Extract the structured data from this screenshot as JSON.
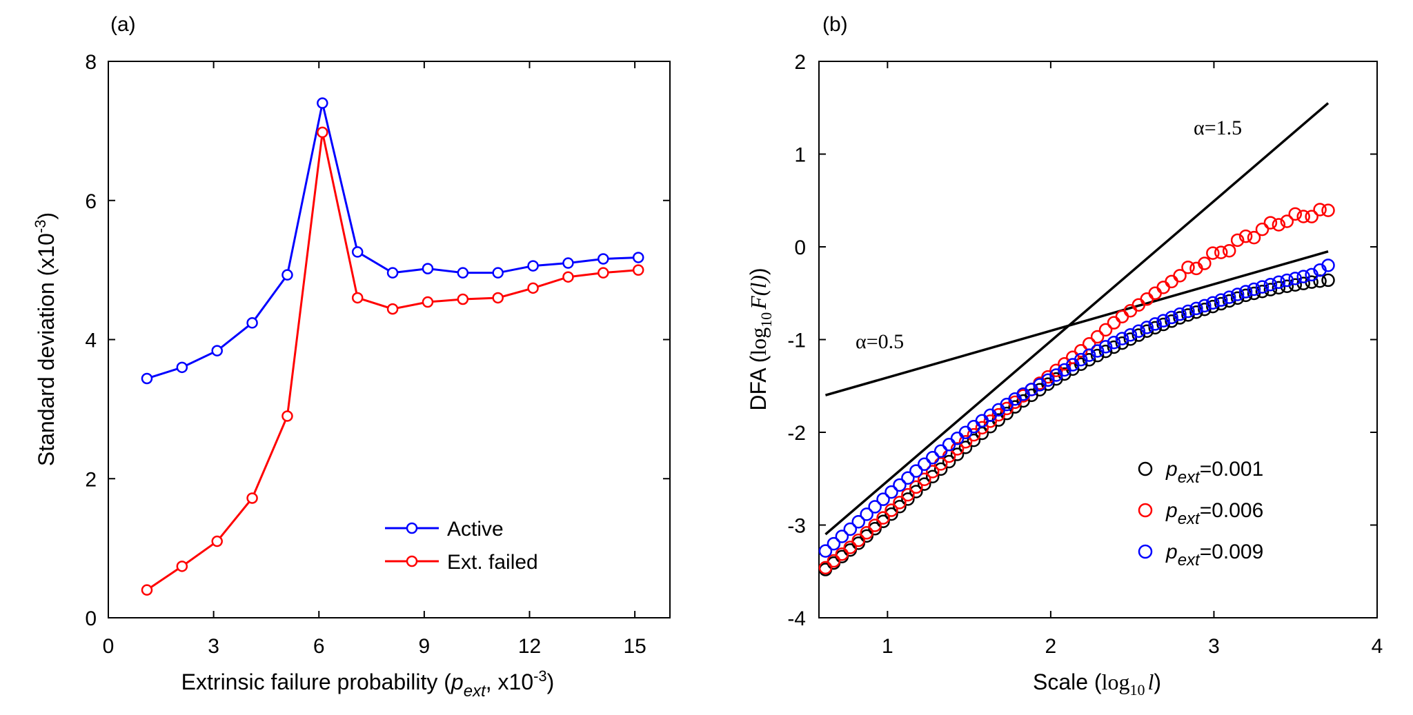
{
  "panel_a": {
    "label": "(a)",
    "ylabel_text": "Standard deviation (x10",
    "ylabel_sup": "-3",
    "ylabel_close": ")",
    "xlabel_text": "Extrinsic failure probability (",
    "xlabel_sub_p": "p",
    "xlabel_sub_ext": "ext",
    "xlabel_mid": ", x10",
    "xlabel_sup": "-3",
    "xlabel_close": ")"
  },
  "panel_b": {
    "label": "(b)",
    "ylabel_prefix": "DFA (",
    "ylabel_math_log": "log",
    "ylabel_math_sub": "10",
    "ylabel_math_F": "F",
    "ylabel_math_l": "(l)",
    "ylabel_suffix": ")",
    "xlabel_prefix": "Scale (",
    "xlabel_math_log": "log",
    "xlabel_math_sub": "10",
    "xlabel_math_l": "l",
    "xlabel_suffix": ")",
    "annotation_alpha15": "α=1.5",
    "annotation_alpha05": "α=0.5"
  },
  "colors": {
    "blue": "#0000ff",
    "red": "#ff0000",
    "black": "#000000"
  },
  "chart_data": [
    {
      "type": "line",
      "title": "",
      "xlim": [
        0,
        16
      ],
      "ylim": [
        0,
        8
      ],
      "xticks": [
        0,
        3,
        6,
        9,
        12,
        15
      ],
      "yticks": [
        0,
        2,
        4,
        6,
        8
      ],
      "legend_position": "bottom-right",
      "series": [
        {
          "name": "Active",
          "color": "#0000ff",
          "x": [
            1.1,
            2.1,
            3.1,
            4.1,
            5.1,
            6.1,
            7.1,
            8.1,
            9.1,
            10.1,
            11.1,
            12.1,
            13.1,
            14.1,
            15.1
          ],
          "y": [
            3.44,
            3.6,
            3.84,
            4.24,
            4.93,
            7.4,
            5.26,
            4.96,
            5.02,
            4.96,
            4.96,
            5.06,
            5.1,
            5.16,
            5.18
          ]
        },
        {
          "name": "Ext. failed",
          "color": "#ff0000",
          "x": [
            1.1,
            2.1,
            3.1,
            4.1,
            5.1,
            6.1,
            7.1,
            8.1,
            9.1,
            10.1,
            11.1,
            12.1,
            13.1,
            14.1,
            15.1
          ],
          "y": [
            0.4,
            0.74,
            1.1,
            1.72,
            2.9,
            6.98,
            4.6,
            4.44,
            4.54,
            4.58,
            4.6,
            4.74,
            4.9,
            4.96,
            5.0
          ]
        }
      ]
    },
    {
      "type": "scatter",
      "title": "",
      "xlim": [
        0.58,
        4
      ],
      "ylim": [
        -4,
        2
      ],
      "xticks": [
        1,
        2,
        3,
        4
      ],
      "yticks": [
        -4,
        -3,
        -2,
        -1,
        0,
        1,
        2
      ],
      "legend_position": "bottom-right",
      "reference_lines": [
        {
          "label": "α=1.5",
          "slope": 1.5,
          "x": [
            0.62,
            3.7
          ],
          "y": [
            -3.1,
            1.55
          ]
        },
        {
          "label": "α=0.5",
          "slope": 0.5,
          "x": [
            0.62,
            3.7
          ],
          "y": [
            -1.6,
            -0.05
          ]
        }
      ],
      "series": [
        {
          "name": "p_ext=0.001",
          "legend_value": "=0.001",
          "color": "#000000",
          "curve": {
            "x": [
              0.62,
              0.8,
              1.0,
              1.2,
              1.4,
              1.6,
              1.8,
              2.0,
              2.2,
              2.4,
              2.6,
              2.8,
              3.0,
              3.2,
              3.4,
              3.6,
              3.7
            ],
            "y": [
              -3.48,
              -3.23,
              -2.92,
              -2.6,
              -2.28,
              -1.98,
              -1.7,
              -1.46,
              -1.25,
              -1.07,
              -0.9,
              -0.76,
              -0.64,
              -0.52,
              -0.44,
              -0.38,
              -0.36
            ]
          }
        },
        {
          "name": "p_ext=0.006",
          "legend_value": "=0.006",
          "color": "#ff0000",
          "curve": {
            "x": [
              0.62,
              0.8,
              1.0,
              1.2,
              1.4,
              1.6,
              1.8,
              2.0,
              2.2,
              2.4,
              2.6,
              2.8,
              3.0,
              3.2,
              3.4,
              3.6,
              3.7
            ],
            "y": [
              -3.46,
              -3.2,
              -2.88,
              -2.55,
              -2.22,
              -1.92,
              -1.65,
              -1.38,
              -1.1,
              -0.8,
              -0.55,
              -0.3,
              -0.1,
              0.1,
              0.27,
              0.36,
              0.38
            ]
          }
        },
        {
          "name": "p_ext=0.009",
          "legend_value": "=0.009",
          "color": "#0000ff",
          "curve": {
            "x": [
              0.62,
              0.8,
              1.0,
              1.2,
              1.4,
              1.6,
              1.8,
              2.0,
              2.2,
              2.4,
              2.6,
              2.8,
              3.0,
              3.2,
              3.4,
              3.6,
              3.7
            ],
            "y": [
              -3.28,
              -3.0,
              -2.68,
              -2.38,
              -2.1,
              -1.85,
              -1.62,
              -1.42,
              -1.2,
              -1.02,
              -0.86,
              -0.72,
              -0.6,
              -0.48,
              -0.38,
              -0.3,
              -0.2
            ]
          }
        }
      ]
    }
  ]
}
